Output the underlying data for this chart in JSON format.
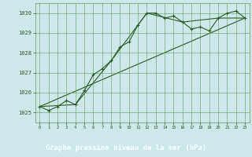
{
  "title": "Graphe pression niveau de la mer (hPa)",
  "bg_color": "#cce8e8",
  "plot_bg_color": "#cce8e8",
  "label_bg_color": "#2d6b2d",
  "label_text_color": "#ffffff",
  "grid_color": "#5a9a5a",
  "line_color": "#2a5a2a",
  "xlim": [
    -0.5,
    23.5
  ],
  "ylim": [
    1024.5,
    1030.5
  ],
  "yticks": [
    1025,
    1026,
    1027,
    1028,
    1029,
    1030
  ],
  "xticks": [
    0,
    1,
    2,
    3,
    4,
    5,
    6,
    7,
    8,
    9,
    10,
    11,
    12,
    13,
    14,
    15,
    16,
    17,
    18,
    19,
    20,
    21,
    22,
    23
  ],
  "series1_x": [
    0,
    1,
    2,
    3,
    4,
    5,
    6,
    7,
    8,
    9,
    10,
    11,
    12,
    13,
    14,
    15,
    16,
    17,
    18,
    19,
    20,
    21,
    22,
    23
  ],
  "series1_y": [
    1025.3,
    1025.1,
    1025.3,
    1025.6,
    1025.4,
    1026.1,
    1026.9,
    1027.2,
    1027.6,
    1028.3,
    1028.55,
    1029.4,
    1030.0,
    1030.0,
    1029.75,
    1029.85,
    1029.55,
    1029.2,
    1029.3,
    1029.1,
    1029.75,
    1030.0,
    1030.1,
    1029.75
  ],
  "series2_x": [
    0,
    23
  ],
  "series2_y": [
    1025.3,
    1029.75
  ],
  "series3_x": [
    0,
    4,
    8,
    12,
    16,
    20,
    23
  ],
  "series3_y": [
    1025.3,
    1025.4,
    1027.6,
    1030.0,
    1029.55,
    1029.75,
    1029.75
  ]
}
